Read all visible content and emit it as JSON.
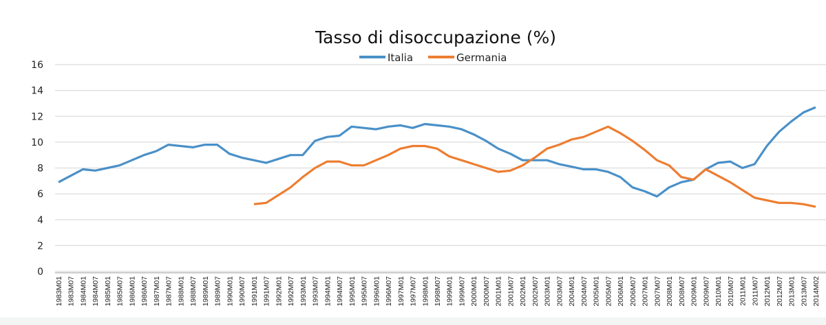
{
  "chart_data": {
    "type": "line",
    "title": "Tasso di disoccupazione  (%)",
    "xlabel": "",
    "ylabel": "",
    "ylim": [
      0,
      16
    ],
    "yticks": [
      0,
      2,
      4,
      6,
      8,
      10,
      12,
      14,
      16
    ],
    "grid": true,
    "legend_position": "top-center",
    "x": [
      "1983M01",
      "1983M07",
      "1984M01",
      "1984M07",
      "1985M01",
      "1985M07",
      "1986M01",
      "1986M07",
      "1987M01",
      "1987M07",
      "1988M01",
      "1988M07",
      "1989M01",
      "1989M07",
      "1990M01",
      "1990M07",
      "1991M01",
      "1991M07",
      "1992M01",
      "1992M07",
      "1993M01",
      "1993M07",
      "1994M01",
      "1994M07",
      "1995M01",
      "1995M07",
      "1996M01",
      "1996M07",
      "1997M01",
      "1997M07",
      "1998M01",
      "1998M07",
      "1999M01",
      "1999M07",
      "2000M01",
      "2000M07",
      "2001M01",
      "2001M07",
      "2002M01",
      "2002M07",
      "2003M01",
      "2003M07",
      "2004M01",
      "2004M07",
      "2005M01",
      "2005M07",
      "2006M01",
      "2006M07",
      "2007M01",
      "2007M07",
      "2008M01",
      "2008M07",
      "2009M01",
      "2009M07",
      "2010M01",
      "2010M07",
      "2011M01",
      "2011M07",
      "2012M01",
      "2012M07",
      "2013M01",
      "2013M07",
      "2014M02"
    ],
    "series": [
      {
        "name": "Italia",
        "color": "#4a90c8",
        "values": [
          6.9,
          7.4,
          7.9,
          7.8,
          8.0,
          8.2,
          8.6,
          9.0,
          9.3,
          9.8,
          9.7,
          9.6,
          9.8,
          9.8,
          9.1,
          8.8,
          8.6,
          8.4,
          8.7,
          9.0,
          9.0,
          10.1,
          10.4,
          10.5,
          11.2,
          11.1,
          11.0,
          11.2,
          11.3,
          11.1,
          11.4,
          11.3,
          11.2,
          11.0,
          10.6,
          10.1,
          9.5,
          9.1,
          8.6,
          8.6,
          8.6,
          8.3,
          8.1,
          7.9,
          7.9,
          7.7,
          7.3,
          6.5,
          6.2,
          5.8,
          6.5,
          6.9,
          7.1,
          7.9,
          8.4,
          8.5,
          8.0,
          8.3,
          9.7,
          10.8,
          11.6,
          12.3,
          12.7
        ]
      },
      {
        "name": "Germania",
        "color": "#ed7d31",
        "values": [
          null,
          null,
          null,
          null,
          null,
          null,
          null,
          null,
          null,
          null,
          null,
          null,
          null,
          null,
          null,
          null,
          5.2,
          5.3,
          5.9,
          6.5,
          7.3,
          8.0,
          8.5,
          8.5,
          8.2,
          8.2,
          8.6,
          9.0,
          9.5,
          9.7,
          9.7,
          9.5,
          8.9,
          8.6,
          8.3,
          8.0,
          7.7,
          7.8,
          8.2,
          8.8,
          9.5,
          9.8,
          10.2,
          10.4,
          10.8,
          11.2,
          10.7,
          10.1,
          9.4,
          8.6,
          8.2,
          7.3,
          7.1,
          7.9,
          7.4,
          6.9,
          6.3,
          5.7,
          5.5,
          5.3,
          5.3,
          5.2,
          5.0
        ]
      }
    ]
  }
}
